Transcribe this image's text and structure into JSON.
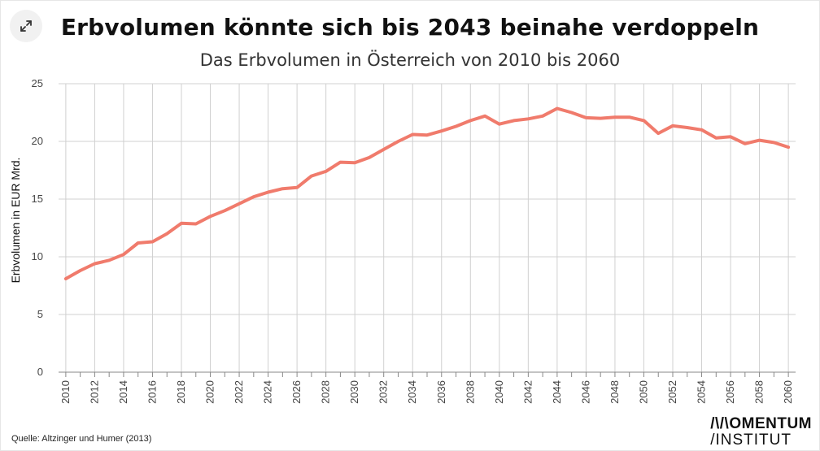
{
  "header": {
    "expand_icon": "expand-diagonal-arrows-icon"
  },
  "chart_data": {
    "type": "line",
    "title": "Erbvolumen könnte sich bis 2043 beinahe verdoppeln",
    "subtitle": "Das Erbvolumen in Österreich von 2010 bis 2060",
    "ylabel": "Erbvolumen in EUR Mrd.",
    "xlabel": "",
    "ylim": [
      0,
      25
    ],
    "yticks": [
      "0",
      "5",
      "10",
      "15",
      "20",
      "25"
    ],
    "xtick_labels": [
      "2010",
      "2012",
      "2014",
      "2016",
      "2018",
      "2020",
      "2022",
      "2024",
      "2026",
      "2028",
      "2030",
      "2032",
      "2034",
      "2036",
      "2038",
      "2040",
      "2042",
      "2044",
      "2046",
      "2048",
      "2050",
      "2052",
      "2054",
      "2056",
      "2058",
      "2060"
    ],
    "grid": true,
    "line_color": "#f07b6c",
    "x": [
      2010,
      2011,
      2012,
      2013,
      2014,
      2015,
      2016,
      2017,
      2018,
      2019,
      2020,
      2021,
      2022,
      2023,
      2024,
      2025,
      2026,
      2027,
      2028,
      2029,
      2030,
      2031,
      2032,
      2033,
      2034,
      2035,
      2036,
      2037,
      2038,
      2039,
      2040,
      2041,
      2042,
      2043,
      2044,
      2045,
      2046,
      2047,
      2048,
      2049,
      2050,
      2051,
      2052,
      2053,
      2054,
      2055,
      2056,
      2057,
      2058,
      2059,
      2060
    ],
    "series": [
      {
        "values": [
          8.1,
          8.8,
          9.4,
          9.7,
          10.2,
          11.2,
          11.3,
          12.0,
          12.9,
          12.85,
          13.5,
          14.0,
          14.6,
          15.2,
          15.6,
          15.9,
          16.0,
          17.0,
          17.4,
          18.2,
          18.15,
          18.6,
          19.3,
          20.0,
          20.6,
          20.55,
          20.9,
          21.3,
          21.8,
          22.2,
          21.5,
          21.8,
          21.95,
          22.2,
          22.85,
          22.5,
          22.05,
          22.0,
          22.1,
          22.1,
          21.8,
          20.7,
          21.35,
          21.2,
          21.0,
          20.3,
          20.4,
          19.8,
          20.1,
          19.9,
          19.5
        ]
      }
    ]
  },
  "source": "Quelle: Altzinger und Humer (2013)",
  "logo": {
    "line1": "/\\/\\OMENTUM",
    "line2": "/INSTITUT"
  }
}
